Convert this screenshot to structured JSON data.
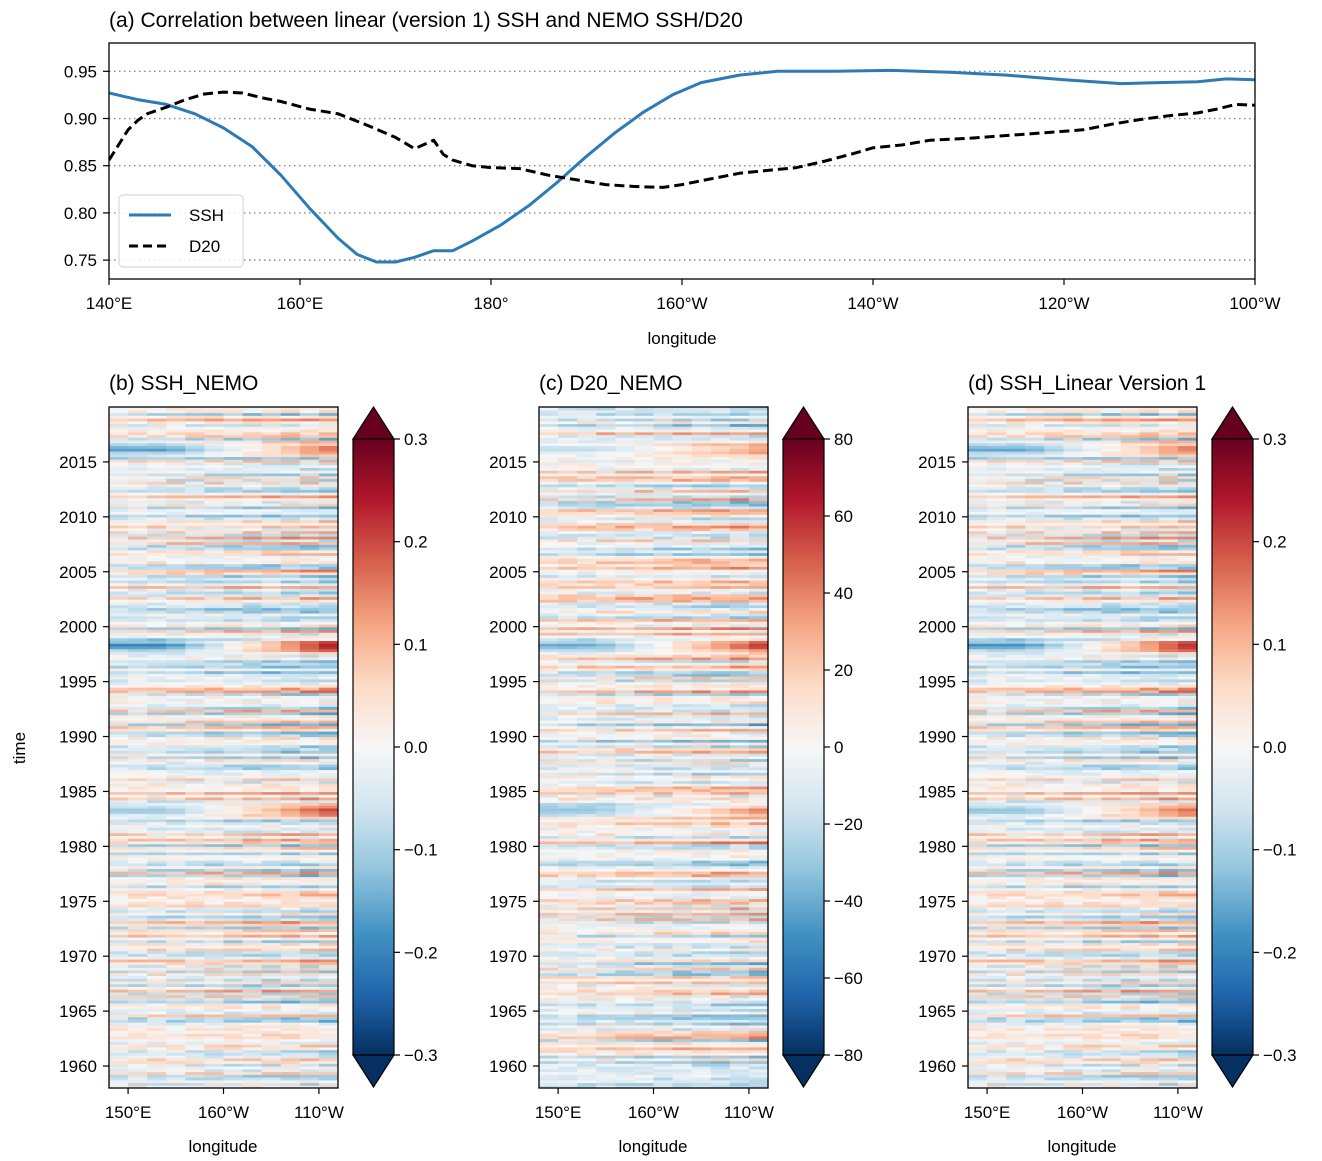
{
  "chart_data": [
    {
      "type": "line",
      "title": "(a) Correlation between linear (version 1) SSH and NEMO SSH/D20",
      "xlabel": "longitude",
      "ylabel": "",
      "xlim": [
        140,
        260
      ],
      "ylim": [
        0.73,
        0.98
      ],
      "x_ticks": [
        140,
        160,
        180,
        200,
        220,
        240,
        260
      ],
      "x_tick_labels": [
        "140°E",
        "160°E",
        "180°",
        "160°W",
        "140°W",
        "120°W",
        "100°W"
      ],
      "y_ticks": [
        0.75,
        0.8,
        0.85,
        0.9,
        0.95
      ],
      "y_tick_labels": [
        "0.75",
        "0.80",
        "0.85",
        "0.90",
        "0.95"
      ],
      "grid": "horizontal dotted",
      "legend_position": "lower-left",
      "series": [
        {
          "name": "SSH",
          "color": "#2c7bb6",
          "style": "solid",
          "x": [
            140,
            143,
            146,
            149,
            152,
            155,
            158,
            161,
            164,
            166,
            168,
            170,
            172,
            174,
            176,
            178,
            181,
            184,
            187,
            190,
            193,
            196,
            199,
            202,
            206,
            210,
            216,
            222,
            228,
            234,
            240,
            246,
            250,
            254,
            257,
            260
          ],
          "y": [
            0.927,
            0.92,
            0.915,
            0.905,
            0.89,
            0.87,
            0.84,
            0.805,
            0.773,
            0.756,
            0.748,
            0.748,
            0.753,
            0.76,
            0.76,
            0.77,
            0.787,
            0.808,
            0.833,
            0.86,
            0.885,
            0.907,
            0.925,
            0.938,
            0.946,
            0.95,
            0.95,
            0.951,
            0.949,
            0.946,
            0.941,
            0.937,
            0.938,
            0.939,
            0.942,
            0.941
          ]
        },
        {
          "name": "D20",
          "color": "#000000",
          "style": "dashed",
          "x": [
            140,
            141,
            142,
            143,
            144,
            146,
            148,
            150,
            152,
            154,
            156,
            158,
            161,
            164,
            167,
            170,
            172,
            174,
            175,
            176,
            178,
            180,
            183,
            186,
            189,
            192,
            195,
            198,
            200,
            203,
            206,
            209,
            212,
            215,
            218,
            220,
            223,
            226,
            230,
            234,
            238,
            242,
            245,
            248,
            251,
            254,
            256,
            258,
            260
          ],
          "y": [
            0.856,
            0.872,
            0.888,
            0.898,
            0.905,
            0.912,
            0.92,
            0.926,
            0.928,
            0.927,
            0.922,
            0.918,
            0.91,
            0.905,
            0.893,
            0.88,
            0.868,
            0.877,
            0.862,
            0.856,
            0.85,
            0.848,
            0.847,
            0.84,
            0.835,
            0.83,
            0.828,
            0.827,
            0.83,
            0.836,
            0.842,
            0.845,
            0.848,
            0.855,
            0.863,
            0.869,
            0.872,
            0.877,
            0.879,
            0.882,
            0.885,
            0.888,
            0.894,
            0.899,
            0.903,
            0.906,
            0.91,
            0.915,
            0.914
          ]
        }
      ]
    },
    {
      "type": "heatmap",
      "title": "(b) SSH_NEMO",
      "xlabel": "longitude",
      "ylabel": "time",
      "x_tick_labels": [
        "150°E",
        "160°W",
        "110°W"
      ],
      "x_ticks": [
        150,
        200,
        250
      ],
      "xlim": [
        140,
        260
      ],
      "y_ticks": [
        1960,
        1965,
        1970,
        1975,
        1980,
        1985,
        1990,
        1995,
        2000,
        2005,
        2010,
        2015
      ],
      "y_tick_labels": [
        "1960",
        "1965",
        "1970",
        "1975",
        "1980",
        "1985",
        "1990",
        "1995",
        "2000",
        "2005",
        "2010",
        "2015"
      ],
      "ylim": [
        1958.0,
        2020.0
      ],
      "colorbar": {
        "min": -0.3,
        "max": 0.3,
        "ticks": [
          -0.3,
          -0.2,
          -0.1,
          0.0,
          0.1,
          0.2,
          0.3
        ],
        "tick_labels": [
          "−0.3",
          "−0.2",
          "−0.1",
          "0.0",
          "0.1",
          "0.2",
          "0.3"
        ],
        "colormap": "RdBu_r",
        "extend": "both"
      },
      "highlighted_events": [
        {
          "time": 1998.3,
          "value": -0.22,
          "east_value": 0.28
        },
        {
          "time": 1983.3,
          "value": -0.12,
          "east_value": 0.24
        },
        {
          "time": 2016.2,
          "value": -0.18,
          "east_value": 0.19
        }
      ]
    },
    {
      "type": "heatmap",
      "title": "(c) D20_NEMO",
      "xlabel": "longitude",
      "ylabel": "",
      "x_tick_labels": [
        "150°E",
        "160°W",
        "110°W"
      ],
      "x_ticks": [
        150,
        200,
        250
      ],
      "xlim": [
        140,
        260
      ],
      "y_ticks": [
        1960,
        1965,
        1970,
        1975,
        1980,
        1985,
        1990,
        1995,
        2000,
        2005,
        2010,
        2015
      ],
      "y_tick_labels": [
        "1960",
        "1965",
        "1970",
        "1975",
        "1980",
        "1985",
        "1990",
        "1995",
        "2000",
        "2005",
        "2010",
        "2015"
      ],
      "ylim": [
        1958.0,
        2020.0
      ],
      "colorbar": {
        "min": -80,
        "max": 80,
        "ticks": [
          -80,
          -60,
          -40,
          -20,
          0,
          20,
          40,
          60,
          80
        ],
        "tick_labels": [
          "−80",
          "−60",
          "−40",
          "−20",
          "0",
          "20",
          "40",
          "60",
          "80"
        ],
        "colormap": "RdBu_r",
        "extend": "both"
      },
      "highlighted_events": [
        {
          "time": 1998.3,
          "value": -45,
          "east_value": 65
        },
        {
          "time": 1983.3,
          "value": -35,
          "east_value": 45
        },
        {
          "time": 2016.2,
          "value": -20,
          "east_value": 40
        }
      ]
    },
    {
      "type": "heatmap",
      "title": "(d) SSH_Linear Version 1",
      "xlabel": "longitude",
      "ylabel": "",
      "x_tick_labels": [
        "150°E",
        "160°W",
        "110°W"
      ],
      "x_ticks": [
        150,
        200,
        250
      ],
      "xlim": [
        140,
        260
      ],
      "y_ticks": [
        1960,
        1965,
        1970,
        1975,
        1980,
        1985,
        1990,
        1995,
        2000,
        2005,
        2010,
        2015
      ],
      "y_tick_labels": [
        "1960",
        "1965",
        "1970",
        "1975",
        "1980",
        "1985",
        "1990",
        "1995",
        "2000",
        "2005",
        "2010",
        "2015"
      ],
      "ylim": [
        1958.0,
        2020.0
      ],
      "colorbar": {
        "min": -0.3,
        "max": 0.3,
        "ticks": [
          -0.3,
          -0.2,
          -0.1,
          0.0,
          0.1,
          0.2,
          0.3
        ],
        "tick_labels": [
          "−0.3",
          "−0.2",
          "−0.1",
          "0.0",
          "0.1",
          "0.2",
          "0.3"
        ],
        "colormap": "RdBu_r",
        "extend": "both"
      },
      "highlighted_events": [
        {
          "time": 1998.3,
          "value": -0.2,
          "east_value": 0.26
        },
        {
          "time": 1983.3,
          "value": -0.13,
          "east_value": 0.2
        },
        {
          "time": 2016.2,
          "value": -0.17,
          "east_value": 0.18
        }
      ]
    }
  ]
}
